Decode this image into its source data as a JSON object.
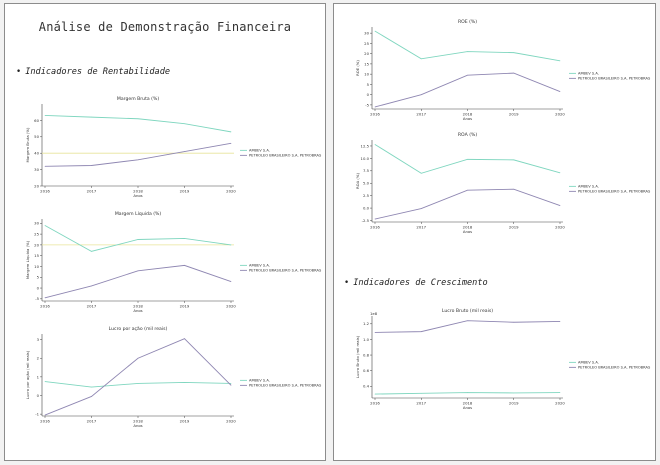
{
  "document": {
    "title": "Análise de Demonstração Financeira",
    "section_rentabilidade": "Indicadores de Rentabilidade",
    "section_crescimento": "Indicadores de Crescimento",
    "bullet": "•"
  },
  "colors": {
    "ambev": "#7fd6bf",
    "petrobras": "#8f87b2",
    "reference_line": "#e8e49a",
    "axis": "#444444"
  },
  "chart_data": [
    {
      "id": "margem-bruta",
      "type": "line",
      "title": "Margem Bruta (%)",
      "xlabel": "Anos",
      "ylabel": "Margem Bruta (%)",
      "x": [
        "2016",
        "2017",
        "2018",
        "2019",
        "2020"
      ],
      "ylim": [
        20,
        70
      ],
      "yticks": [
        20,
        30,
        40,
        50,
        60
      ],
      "reference_y": 40,
      "legend_position": "right",
      "series": [
        {
          "name": "AMBEV S.A.",
          "color": "#7fd6bf",
          "values": [
            63,
            62,
            61,
            58,
            53
          ]
        },
        {
          "name": "PETROLEO BRASILEIRO S.A. PETROBRAS",
          "color": "#8f87b2",
          "values": [
            32,
            32.5,
            36,
            41,
            46
          ]
        }
      ]
    },
    {
      "id": "margem-liquida",
      "type": "line",
      "title": "Margem Líquida (%)",
      "xlabel": "Anos",
      "ylabel": "Margem Líquida (%)",
      "x": [
        "2016",
        "2017",
        "2018",
        "2019",
        "2020"
      ],
      "ylim": [
        -6,
        32
      ],
      "yticks": [
        -5,
        0,
        5,
        10,
        15,
        20,
        25,
        30
      ],
      "reference_y": 20,
      "legend_position": "right",
      "series": [
        {
          "name": "AMBEV S.A.",
          "color": "#7fd6bf",
          "values": [
            29,
            17,
            22.5,
            23,
            20
          ]
        },
        {
          "name": "PETROLEO BRASILEIRO S.A. PETROBRAS",
          "color": "#8f87b2",
          "values": [
            -4.5,
            1,
            8,
            10.5,
            3
          ]
        }
      ]
    },
    {
      "id": "lucro-por-acao",
      "type": "line",
      "title": "Lucro por ação (mil reais)",
      "xlabel": "Anos",
      "ylabel": "Lucro por ação (mil reais)",
      "x": [
        "2016",
        "2017",
        "2018",
        "2019",
        "2020"
      ],
      "ylim": [
        -1.1,
        3.3
      ],
      "yticks": [
        -1,
        0,
        1,
        2,
        3
      ],
      "legend_position": "right",
      "series": [
        {
          "name": "AMBEV S.A.",
          "color": "#7fd6bf",
          "values": [
            0.75,
            0.45,
            0.65,
            0.7,
            0.65
          ]
        },
        {
          "name": "PETROLEO BRASILEIRO S.A. PETROBRAS",
          "color": "#8f87b2",
          "values": [
            -1.05,
            -0.05,
            2,
            3.05,
            0.55
          ]
        }
      ]
    },
    {
      "id": "roe",
      "type": "line",
      "title": "ROE (%)",
      "xlabel": "Anos",
      "ylabel": "ROE (%)",
      "x": [
        "2016",
        "2017",
        "2018",
        "2019",
        "2020"
      ],
      "ylim": [
        -7,
        33
      ],
      "yticks": [
        -5,
        0,
        5,
        10,
        15,
        20,
        25,
        30
      ],
      "legend_position": "right",
      "series": [
        {
          "name": "AMBEV S.A.",
          "color": "#7fd6bf",
          "values": [
            31,
            17.5,
            21,
            20.5,
            16.5
          ]
        },
        {
          "name": "PETROLEO BRASILEIRO S.A. PETROBRAS",
          "color": "#8f87b2",
          "values": [
            -6,
            0,
            9.5,
            10.5,
            1.5
          ]
        }
      ]
    },
    {
      "id": "roa",
      "type": "line",
      "title": "ROA (%)",
      "xlabel": "Anos",
      "ylabel": "ROA (%)",
      "x": [
        "2016",
        "2017",
        "2018",
        "2019",
        "2020"
      ],
      "ylim": [
        -2.8,
        13.7
      ],
      "yticks": [
        -2.5,
        0.0,
        2.5,
        5.0,
        7.5,
        10.0,
        12.5
      ],
      "legend_position": "right",
      "series": [
        {
          "name": "AMBEV S.A.",
          "color": "#7fd6bf",
          "values": [
            12.8,
            7.0,
            9.8,
            9.7,
            7.1
          ]
        },
        {
          "name": "PETROLEO BRASILEIRO S.A. PETROBRAS",
          "color": "#8f87b2",
          "values": [
            -2.2,
            -0.1,
            3.6,
            3.8,
            0.5
          ]
        }
      ]
    },
    {
      "id": "lucro-bruto",
      "type": "line",
      "title": "Lucro Bruto (mil reais)",
      "xlabel": "Anos",
      "ylabel": "Lucro Bruto (mil reais)",
      "x": [
        "2016",
        "2017",
        "2018",
        "2019",
        "2020"
      ],
      "ylim": [
        0.25,
        1.3
      ],
      "yticks": [
        0.4,
        0.6,
        0.8,
        1.0,
        1.2
      ],
      "y_offset_label": "1e8",
      "legend_position": "right",
      "series": [
        {
          "name": "AMBEV S.A.",
          "color": "#7fd6bf",
          "values": [
            0.3,
            0.31,
            0.32,
            0.315,
            0.32
          ]
        },
        {
          "name": "PETROLEO BRASILEIRO S.A. PETROBRAS",
          "color": "#8f87b2",
          "values": [
            1.09,
            1.1,
            1.24,
            1.22,
            1.23
          ]
        }
      ]
    }
  ]
}
